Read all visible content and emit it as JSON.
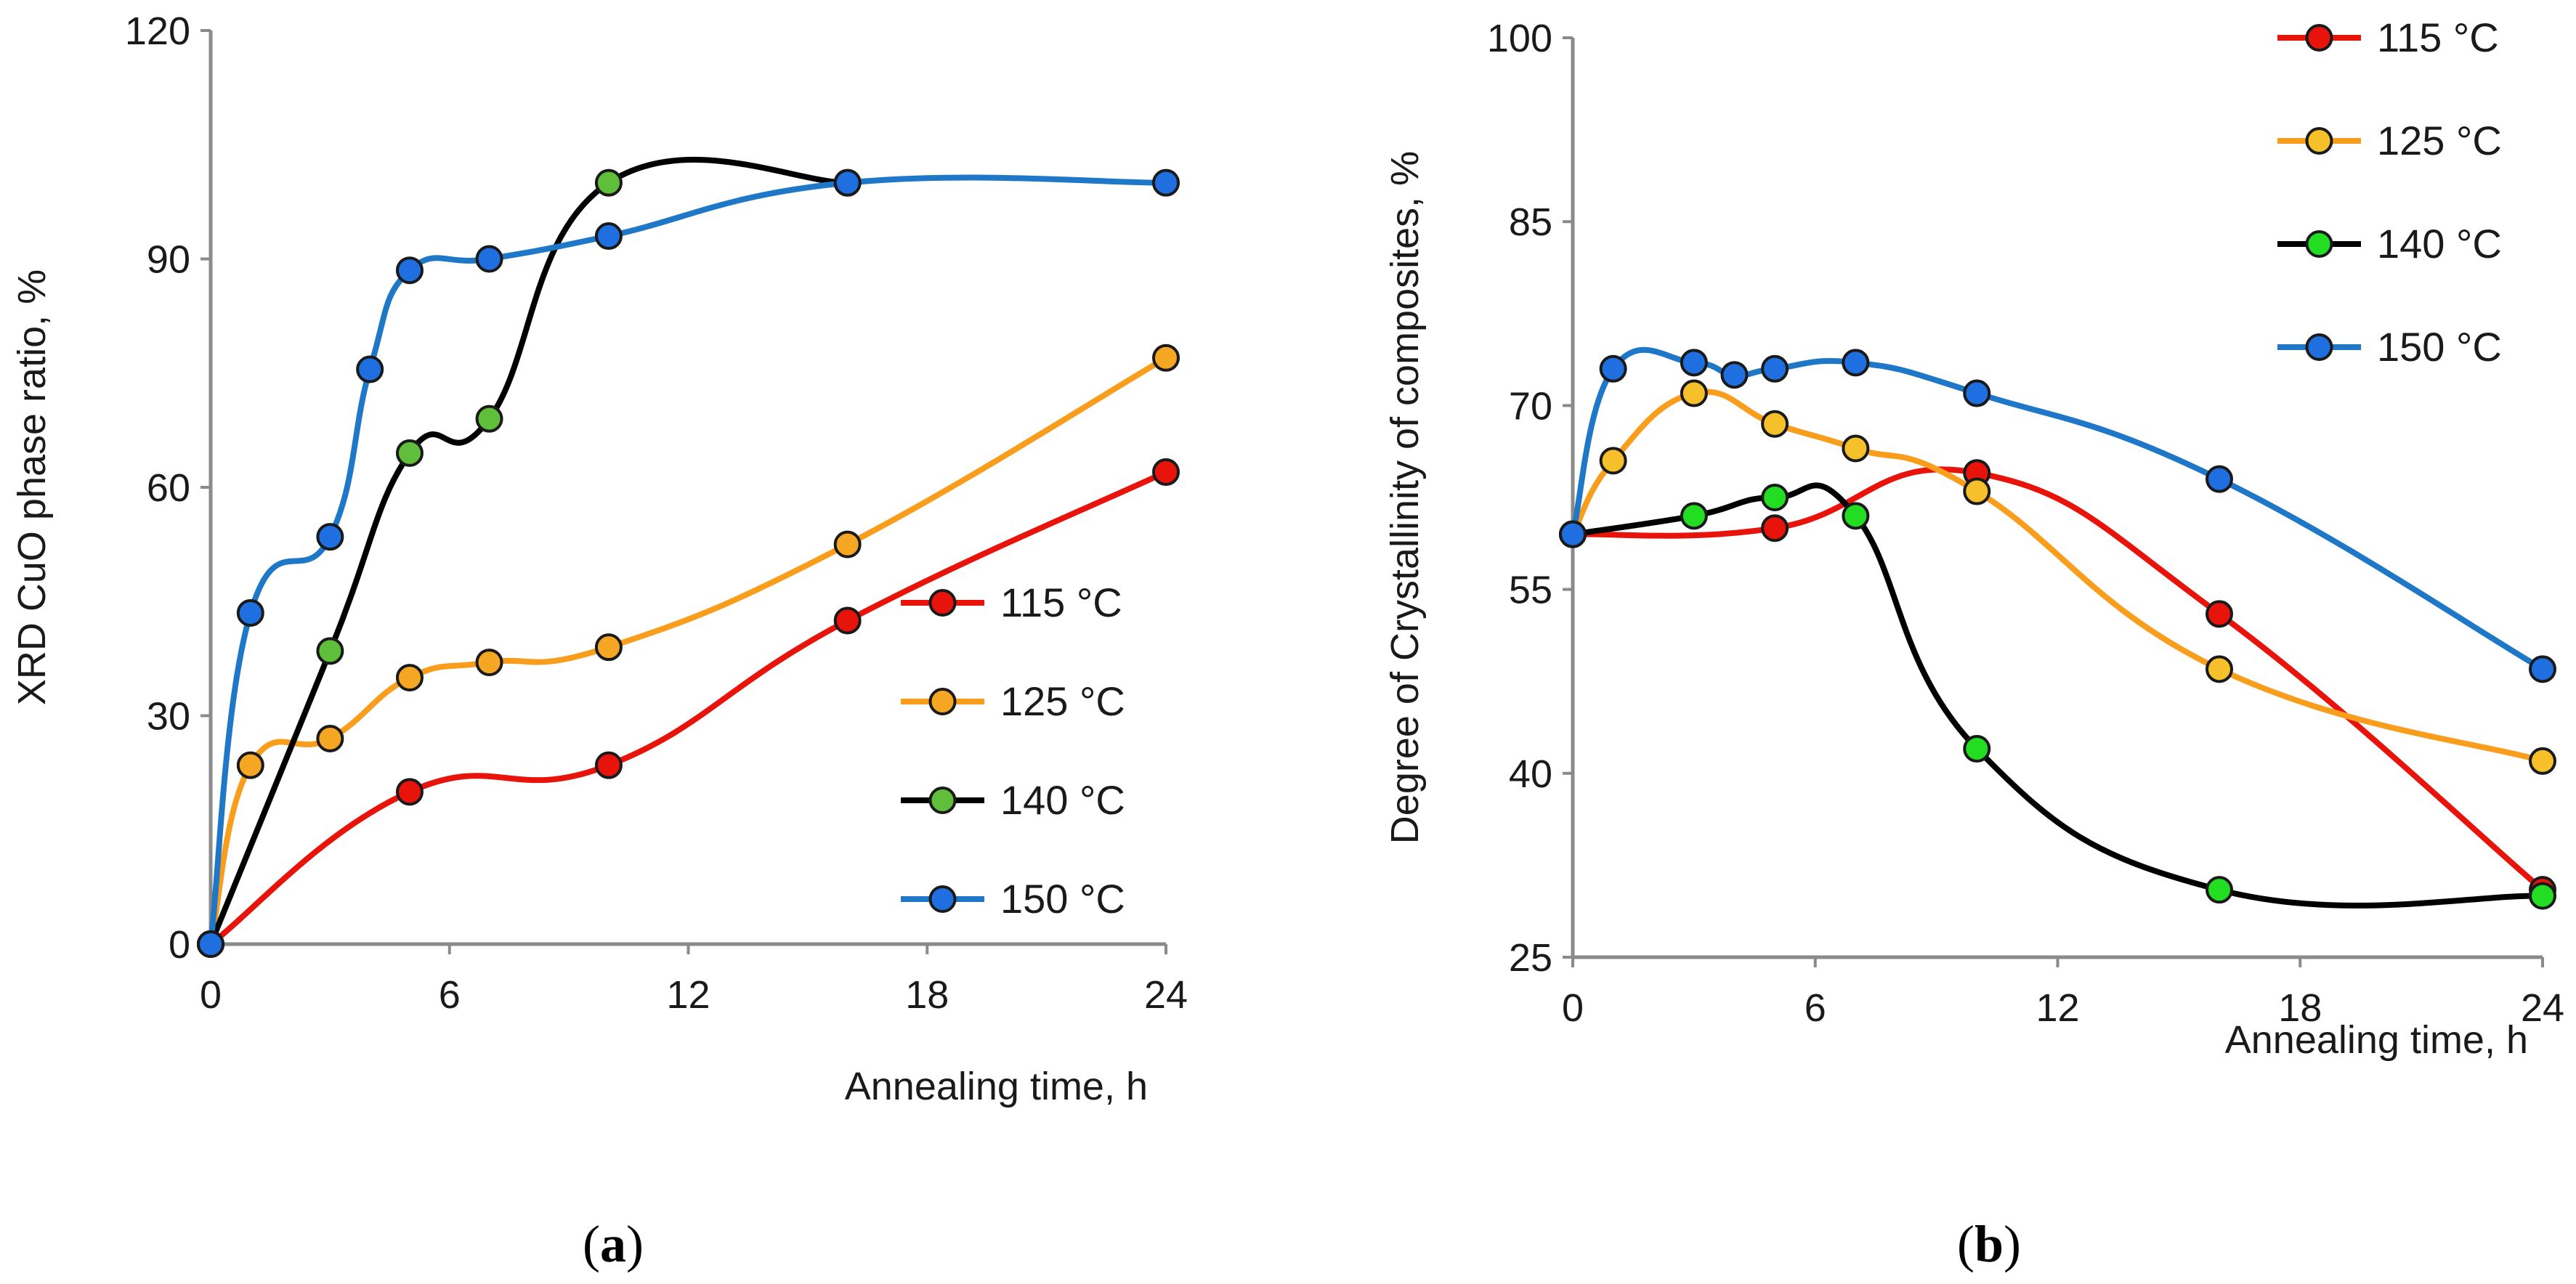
{
  "chart_data": [
    {
      "type": "line",
      "panel_label": "a",
      "xlabel": "Annealing time, h",
      "ylabel": "XRD CuO phase ratio, %",
      "xlim": [
        0,
        24
      ],
      "ylim": [
        0,
        120
      ],
      "xticks": [
        "0",
        "6",
        "12",
        "18",
        "24"
      ],
      "yticks": [
        "0",
        "30",
        "60",
        "90",
        "120"
      ],
      "legend_position": "lower-right",
      "series": [
        {
          "name": "115 °C",
          "line_color": "#e8140c",
          "marker_color": "#e8140c",
          "x": [
            0,
            5,
            10,
            16,
            24
          ],
          "y": [
            0,
            20,
            23.5,
            42.5,
            62
          ]
        },
        {
          "name": "125 °C",
          "line_color": "#f89d1c",
          "marker_color": "#f5a623",
          "x": [
            0,
            1,
            3,
            5,
            7,
            10,
            16,
            24
          ],
          "y": [
            0,
            23.5,
            27,
            35,
            37,
            39,
            52.5,
            77
          ]
        },
        {
          "name": "140 °C",
          "line_color": "#000000",
          "marker_color": "#5fbf3a",
          "x": [
            0,
            3,
            5,
            7,
            10,
            16
          ],
          "y": [
            0,
            38.5,
            64.5,
            69,
            100,
            100
          ]
        },
        {
          "name": "150 °C",
          "line_color": "#1f77c8",
          "marker_color": "#1f6fe0",
          "x": [
            0,
            1,
            3,
            4,
            5,
            7,
            10,
            16,
            24
          ],
          "y": [
            0,
            43.5,
            53.5,
            75.5,
            88.5,
            90,
            93,
            100,
            100
          ]
        }
      ]
    },
    {
      "type": "line",
      "panel_label": "b",
      "xlabel": "Annealing time, h",
      "ylabel": "Degree of Crystallinity of composites, %",
      "xlim": [
        0,
        24
      ],
      "ylim": [
        25,
        100
      ],
      "xticks": [
        "0",
        "6",
        "12",
        "18",
        "24"
      ],
      "yticks": [
        "25",
        "40",
        "55",
        "70",
        "85",
        "100"
      ],
      "legend_position": "top-right",
      "series": [
        {
          "name": "115 °C",
          "line_color": "#e8140c",
          "marker_color": "#e8140c",
          "x": [
            0,
            5,
            10,
            16,
            24
          ],
          "y": [
            59.5,
            60,
            64.5,
            53,
            30.5
          ]
        },
        {
          "name": "125 °C",
          "line_color": "#f89d1c",
          "marker_color": "#f5c02a",
          "x": [
            0,
            1,
            3,
            5,
            7,
            10,
            16,
            24
          ],
          "y": [
            59.5,
            65.5,
            71,
            68.5,
            66.5,
            63,
            48.5,
            41
          ]
        },
        {
          "name": "140 °C",
          "line_color": "#000000",
          "marker_color": "#22dd22",
          "x": [
            0,
            3,
            5,
            7,
            10,
            16,
            24
          ],
          "y": [
            59.5,
            61,
            62.5,
            61,
            42,
            30.5,
            30
          ]
        },
        {
          "name": "150 °C",
          "line_color": "#1f77c8",
          "marker_color": "#1f6fe0",
          "x": [
            0,
            1,
            3,
            4,
            5,
            7,
            10,
            16,
            24
          ],
          "y": [
            59.5,
            73,
            73.5,
            72.5,
            73,
            73.5,
            71,
            64,
            48.5
          ]
        }
      ]
    }
  ]
}
